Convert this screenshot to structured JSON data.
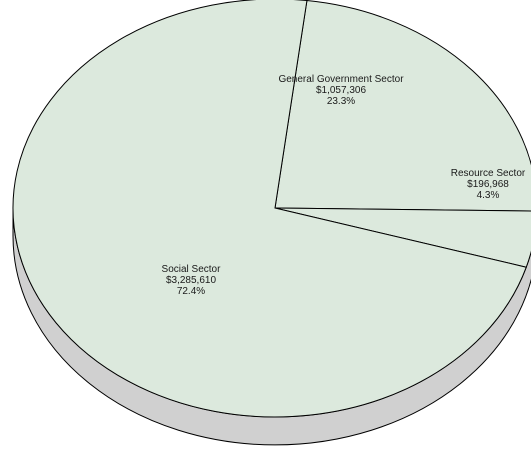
{
  "chart_data": {
    "type": "pie",
    "title": "",
    "series": [
      {
        "name": "",
        "slices": [
          {
            "label": "General Government Sector",
            "value_text": "$1,057,306",
            "percent_text": "23.3%",
            "value": 1057306,
            "percent": 23.3
          },
          {
            "label": "Resource Sector",
            "value_text": "$196,968",
            "percent_text": "4.3%",
            "value": 196968,
            "percent": 4.3
          },
          {
            "label": "Social Sector",
            "value_text": "$3,285,610",
            "percent_text": "72.4%",
            "value": 3285610,
            "percent": 72.4
          }
        ]
      }
    ],
    "style": "3d",
    "legend": "none",
    "colors": {
      "face": "#dce9dd",
      "side": "#d0d0d0",
      "outline": "#000000"
    }
  }
}
